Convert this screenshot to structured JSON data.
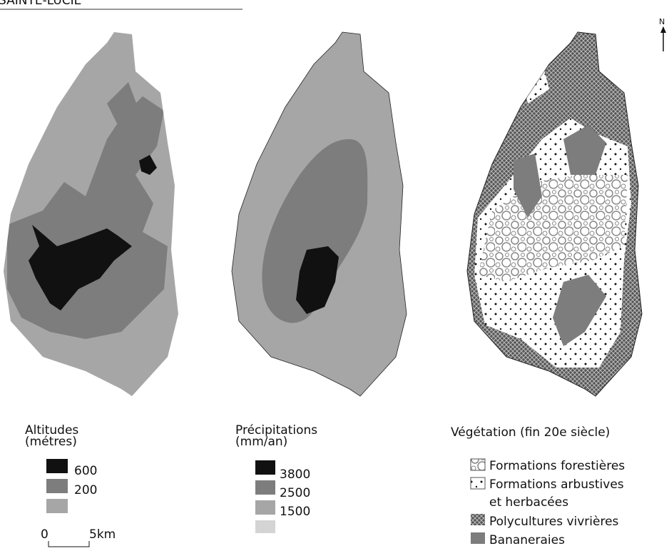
{
  "title": "SAINTE-LUCIE",
  "north": "N",
  "altitudes": {
    "title": "Altitudes",
    "unit": "(métres)",
    "labels": [
      600,
      200
    ],
    "scale": [
      "0",
      "5km"
    ]
  },
  "precipitations": {
    "title": "Précipitations",
    "unit": "(mm/an)",
    "labels": [
      3800,
      2500,
      1500
    ]
  },
  "vegetation": {
    "title": "Végétation (fin 20e siècle)",
    "items": [
      [
        "Formations forestières"
      ],
      [
        "Formations arbustives",
        "et herbacées"
      ],
      [
        "Polycultures vivrières"
      ],
      [
        "Bananeraies"
      ]
    ]
  }
}
